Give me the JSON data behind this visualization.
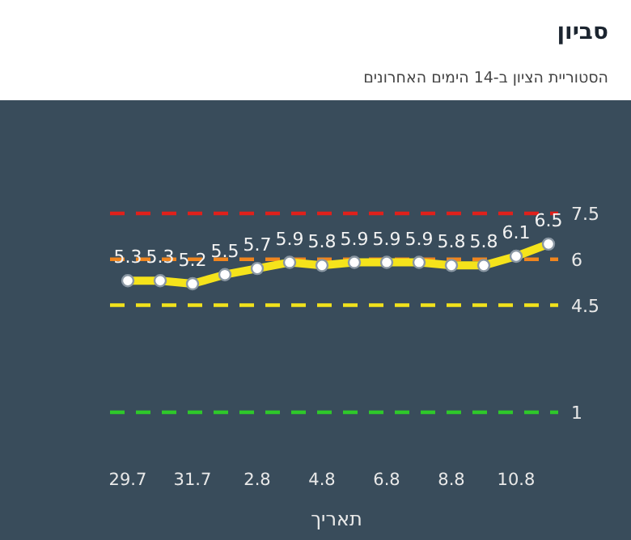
{
  "chart_data": {
    "type": "line",
    "title": "סביון",
    "subtitle": "הסטוריית הציון ב-14 הימים האחרונים",
    "xlabel": "תאריך",
    "categories": [
      "29.7",
      null,
      "31.7",
      null,
      "2.8",
      null,
      "4.8",
      null,
      "6.8",
      null,
      "8.8",
      null,
      "10.8",
      null
    ],
    "values": [
      5.3,
      5.3,
      5.2,
      5.5,
      5.7,
      5.9,
      5.8,
      5.9,
      5.9,
      5.9,
      5.8,
      5.8,
      6.1,
      6.5
    ],
    "color": "#f5e31b",
    "marker": "circle",
    "data_labels": true,
    "grid": false,
    "ylim": [
      1,
      7.5
    ],
    "yticks": [
      1,
      4.5,
      6,
      7.5
    ],
    "ref_lines": [
      {
        "axis": "y",
        "value": 7.5,
        "color": "#e0201b",
        "line_style": "dashed"
      },
      {
        "axis": "y",
        "value": 6,
        "color": "#f0851e",
        "line_style": "dashed"
      },
      {
        "axis": "y",
        "value": 4.5,
        "color": "#f2e21c",
        "line_style": "dashed"
      },
      {
        "axis": "y",
        "value": 1,
        "color": "#2ec82a",
        "line_style": "dashed"
      }
    ]
  }
}
